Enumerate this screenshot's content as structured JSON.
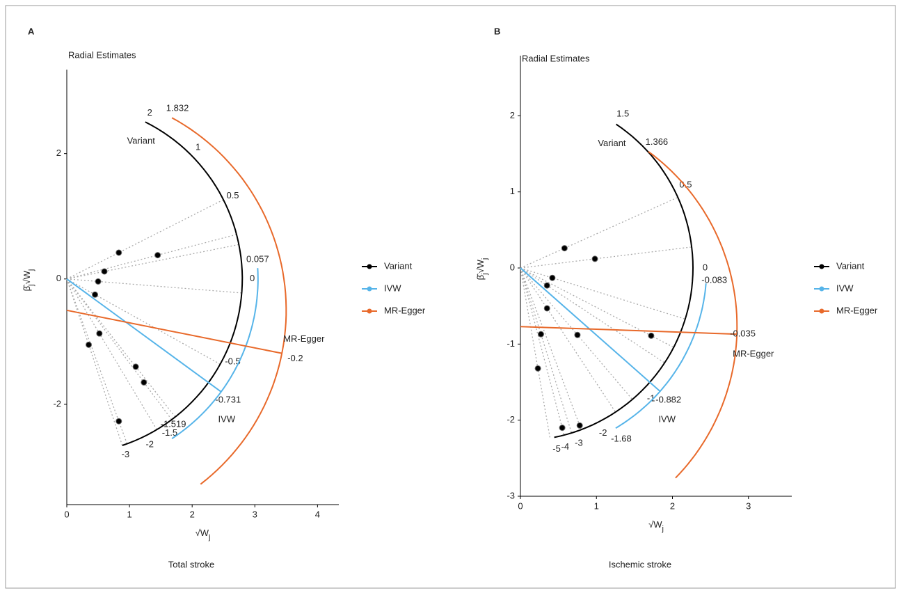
{
  "chart_data": [
    {
      "type": "radial",
      "panel": "A",
      "title": "Radial Estimates",
      "caption": "Total stroke",
      "xlabel": {
        "text": "√W",
        "sub": "j"
      },
      "ylabel": {
        "beta": "β̂",
        "beta_sub": "j",
        "root": "√W",
        "root_sub": "j"
      },
      "xlim": [
        0,
        4.34
      ],
      "xticks": [
        0,
        1,
        2,
        3,
        4
      ],
      "ylim": [
        -3.6,
        3.34
      ],
      "yticks": [
        -2,
        0,
        2
      ],
      "series": [
        {
          "name": "Variant",
          "color": "#000000",
          "x": [
            0.83,
            1.45,
            0.6,
            0.5,
            0.45,
            0.35,
            0.52,
            1.1,
            1.23,
            0.83
          ],
          "y": [
            0.42,
            0.38,
            0.12,
            -0.04,
            -0.25,
            -1.05,
            -0.87,
            -1.4,
            -1.65,
            -2.27
          ],
          "scale_radius": 2.8,
          "scale_ticks": [
            2,
            1,
            0.5,
            0,
            -0.5,
            -1.5,
            -2,
            -3
          ]
        },
        {
          "name": "IVW",
          "color": "#56b4e9",
          "slope": -0.731,
          "scale_radius": 3.05,
          "scale_ticks": [
            0.057,
            -1.519
          ]
        },
        {
          "name": "MR-Egger",
          "color": "#e8692a",
          "intercept": -0.5,
          "slope": -0.2,
          "scale_radius": 3.5,
          "scale_range": [
            -1.3,
            1.832
          ],
          "scale_ticks": [
            1.832
          ]
        }
      ]
    },
    {
      "type": "radial",
      "panel": "B",
      "title": "Radial Estimates",
      "caption": "Ischemic stroke",
      "xlabel": {
        "text": "√W",
        "sub": "j"
      },
      "ylabel": {
        "beta": "β̂",
        "beta_sub": "j",
        "root": "√W",
        "root_sub": "j"
      },
      "xlim": [
        0,
        3.57
      ],
      "xticks": [
        0,
        1,
        2,
        3
      ],
      "ylim": [
        -3,
        2.79
      ],
      "yticks": [
        -3,
        -2,
        -1,
        0,
        1,
        2
      ],
      "series": [
        {
          "name": "Variant",
          "color": "#000000",
          "x": [
            0.58,
            0.98,
            0.42,
            0.35,
            0.35,
            0.27,
            0.75,
            1.72,
            0.23,
            0.55,
            0.78
          ],
          "y": [
            0.26,
            0.12,
            -0.13,
            -0.23,
            -0.53,
            -0.87,
            -0.88,
            -0.89,
            -1.32,
            -2.1,
            -2.07
          ],
          "scale_radius": 2.27,
          "scale_ticks": [
            1.5,
            0.5,
            0,
            -1,
            -2,
            -3,
            -4,
            -5
          ]
        },
        {
          "name": "IVW",
          "color": "#56b4e9",
          "slope": -0.882,
          "scale_radius": 2.45,
          "scale_ticks": [
            -0.083,
            -1.68
          ]
        },
        {
          "name": "MR-Egger",
          "color": "#e8692a",
          "intercept": -0.77,
          "slope": -0.035,
          "scale_radius": 2.85,
          "scale_range": [
            -0.975,
            1.366
          ],
          "scale_ticks": [
            1.366
          ]
        }
      ]
    }
  ]
}
